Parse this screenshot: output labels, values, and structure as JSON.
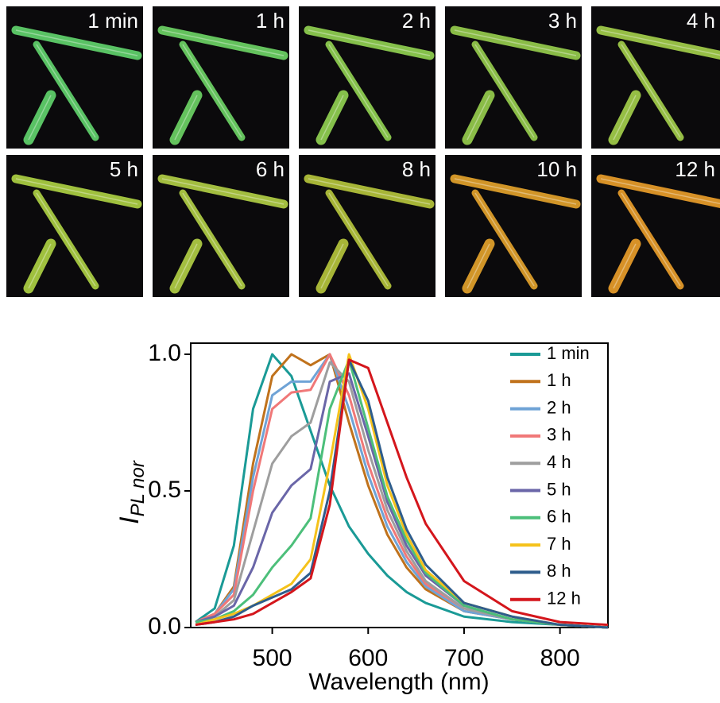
{
  "image_panels": [
    {
      "label": "1 min",
      "tint": "#62d66e"
    },
    {
      "label": "1 h",
      "tint": "#6ed766"
    },
    {
      "label": "2 h",
      "tint": "#93d452"
    },
    {
      "label": "3 h",
      "tint": "#98d04e"
    },
    {
      "label": "4 h",
      "tint": "#a6d24c"
    },
    {
      "label": "5 h",
      "tint": "#b0d444"
    },
    {
      "label": "6 h",
      "tint": "#b4d246"
    },
    {
      "label": "8 h",
      "tint": "#b8c83c"
    },
    {
      "label": "10 h",
      "tint": "#e7a52c"
    },
    {
      "label": "12 h",
      "tint": "#eea02a"
    }
  ],
  "chart_data": {
    "type": "line",
    "ylabel": {
      "main": "I",
      "subscript": "PL nor"
    },
    "xlabel": "Wavelength (nm)",
    "x": [
      420,
      440,
      460,
      480,
      500,
      520,
      540,
      560,
      580,
      600,
      620,
      640,
      660,
      700,
      750,
      800,
      850
    ],
    "xlim": [
      415,
      850
    ],
    "xticks": [
      500,
      600,
      700,
      800
    ],
    "ylim": [
      0,
      1.0
    ],
    "yticks": [
      {
        "value": 0,
        "label": "0.0"
      },
      {
        "value": 0.5,
        "label": "0.5"
      },
      {
        "value": 1,
        "label": "1.0"
      }
    ],
    "legend": "upper right",
    "series": [
      {
        "name": "1 min",
        "color": "#1a9a96",
        "values": [
          0.02,
          0.07,
          0.3,
          0.8,
          1.0,
          0.92,
          0.72,
          0.52,
          0.37,
          0.27,
          0.19,
          0.13,
          0.09,
          0.04,
          0.02,
          0.01,
          0.0
        ]
      },
      {
        "name": "1 h",
        "color": "#c0721c",
        "values": [
          0.02,
          0.05,
          0.15,
          0.6,
          0.92,
          1.0,
          0.96,
          1.0,
          0.75,
          0.52,
          0.34,
          0.22,
          0.14,
          0.06,
          0.03,
          0.01,
          0.0
        ]
      },
      {
        "name": "2 h",
        "color": "#6fa3d6",
        "values": [
          0.02,
          0.05,
          0.14,
          0.55,
          0.85,
          0.9,
          0.9,
          1.0,
          0.8,
          0.56,
          0.37,
          0.24,
          0.15,
          0.06,
          0.03,
          0.01,
          0.0
        ]
      },
      {
        "name": "3 h",
        "color": "#f07878",
        "values": [
          0.02,
          0.05,
          0.12,
          0.5,
          0.8,
          0.86,
          0.87,
          1.0,
          0.85,
          0.6,
          0.4,
          0.26,
          0.16,
          0.07,
          0.03,
          0.01,
          0.0
        ]
      },
      {
        "name": "4 h",
        "color": "#9e9e9e",
        "values": [
          0.02,
          0.04,
          0.1,
          0.35,
          0.6,
          0.7,
          0.75,
          0.97,
          0.9,
          0.65,
          0.43,
          0.28,
          0.17,
          0.07,
          0.03,
          0.01,
          0.0
        ]
      },
      {
        "name": "5 h",
        "color": "#6a66a8",
        "values": [
          0.02,
          0.04,
          0.08,
          0.22,
          0.42,
          0.52,
          0.58,
          0.9,
          0.93,
          0.7,
          0.46,
          0.3,
          0.19,
          0.08,
          0.03,
          0.01,
          0.0
        ]
      },
      {
        "name": "6 h",
        "color": "#4cbf7a",
        "values": [
          0.02,
          0.03,
          0.06,
          0.12,
          0.22,
          0.3,
          0.4,
          0.8,
          0.98,
          0.73,
          0.48,
          0.32,
          0.2,
          0.08,
          0.03,
          0.01,
          0.0
        ]
      },
      {
        "name": "7 h",
        "color": "#f5c21b",
        "values": [
          0.01,
          0.03,
          0.05,
          0.08,
          0.12,
          0.16,
          0.25,
          0.6,
          1.0,
          0.8,
          0.52,
          0.34,
          0.21,
          0.09,
          0.04,
          0.01,
          0.0
        ]
      },
      {
        "name": "8 h",
        "color": "#2e5d8c",
        "values": [
          0.01,
          0.02,
          0.04,
          0.08,
          0.11,
          0.14,
          0.2,
          0.5,
          0.98,
          0.83,
          0.55,
          0.36,
          0.23,
          0.09,
          0.04,
          0.01,
          0.0
        ]
      },
      {
        "name": "12 h",
        "color": "#d4161c",
        "values": [
          0.01,
          0.02,
          0.03,
          0.05,
          0.09,
          0.13,
          0.18,
          0.45,
          0.98,
          0.95,
          0.75,
          0.55,
          0.38,
          0.17,
          0.06,
          0.02,
          0.01
        ]
      }
    ]
  }
}
